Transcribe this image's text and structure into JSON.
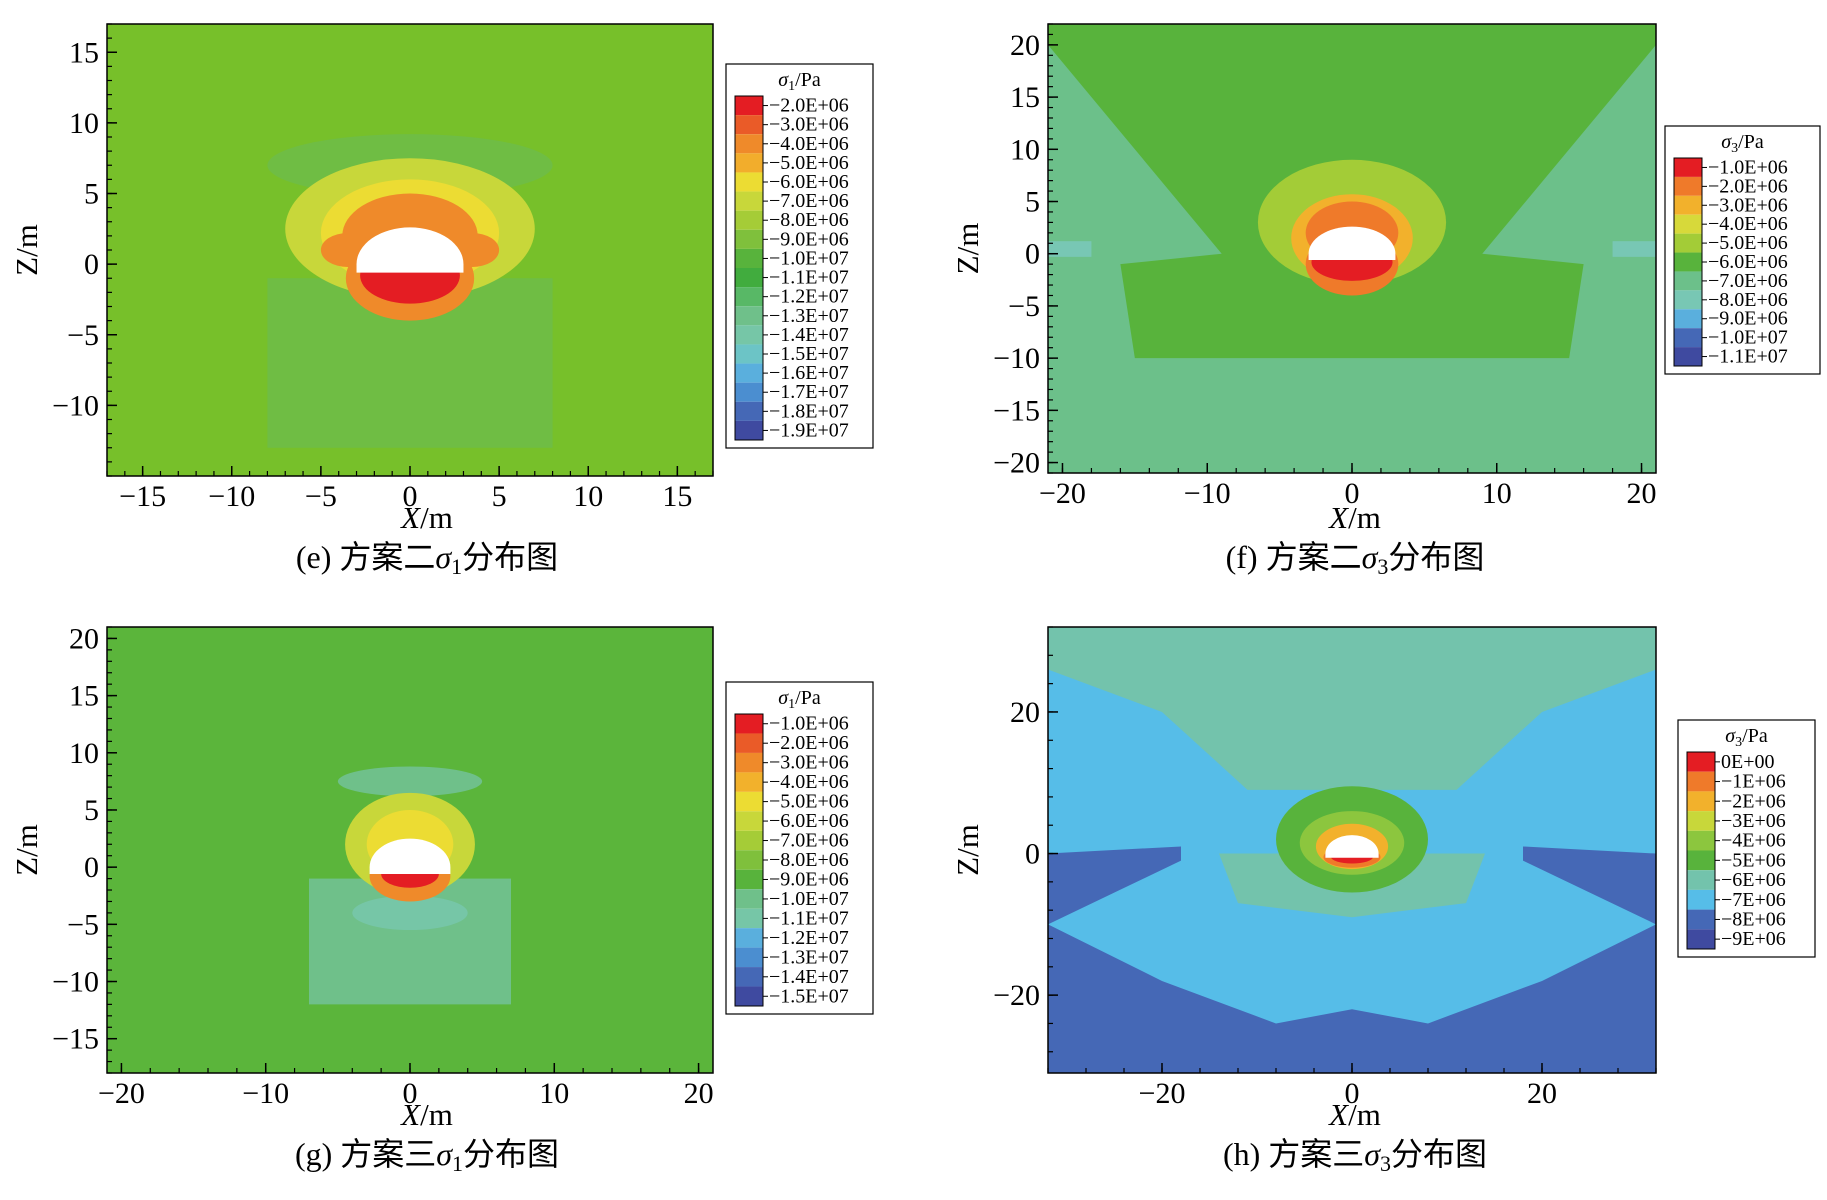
{
  "figure": {
    "panels": [
      {
        "id": "e",
        "caption_prefix": "(e) 方案二",
        "caption_symbol": "σ",
        "caption_sub": "1",
        "caption_suffix": "分布图",
        "xlabel": "X/m",
        "ylabel": "Z/m"
      },
      {
        "id": "f",
        "caption_prefix": "(f) 方案二",
        "caption_symbol": "σ",
        "caption_sub": "3",
        "caption_suffix": "分布图",
        "xlabel": "X/m",
        "ylabel": "Z/m"
      },
      {
        "id": "g",
        "caption_prefix": "(g) 方案三",
        "caption_symbol": "σ",
        "caption_sub": "1",
        "caption_suffix": "分布图",
        "xlabel": "X/m",
        "ylabel": "Z/m"
      },
      {
        "id": "h",
        "caption_prefix": "(h) 方案三",
        "caption_symbol": "σ",
        "caption_sub": "3",
        "caption_suffix": "分布图",
        "xlabel": "X/m",
        "ylabel": "Z/m"
      }
    ]
  },
  "chart_data": [
    {
      "type": "heatmap",
      "panel": "e",
      "xlabel": "X/m",
      "ylabel": "Z/m",
      "xlim": [
        -17,
        17
      ],
      "ylim": [
        -15,
        17
      ],
      "xticks": [
        -15,
        -10,
        -5,
        0,
        5,
        10,
        15
      ],
      "yticks": [
        -10,
        -5,
        0,
        5,
        10,
        15
      ],
      "background_color": "#77c02a",
      "legend": {
        "title_symbol": "σ",
        "title_sub": "1",
        "title_unit": "/Pa",
        "labels": [
          "−2.0E+06",
          "−3.0E+06",
          "−4.0E+06",
          "−5.0E+06",
          "−6.0E+06",
          "−7.0E+06",
          "−8.0E+06",
          "−9.0E+06",
          "−1.0E+07",
          "−1.1E+07",
          "−1.2E+07",
          "−1.3E+07",
          "−1.4E+07",
          "−1.5E+07",
          "−1.6E+07",
          "−1.7E+07",
          "−1.8E+07",
          "−1.9E+07"
        ],
        "colors": [
          "#e41d23",
          "#ea5b28",
          "#ef8a2a",
          "#f2ad2c",
          "#ecdc33",
          "#c8d73a",
          "#a5cc37",
          "#7fc03c",
          "#58b33c",
          "#41ac3e",
          "#58b866",
          "#6fc08a",
          "#76c6a7",
          "#6cc4c6",
          "#5aafdd",
          "#4b8ed0",
          "#4568b6",
          "#3f4aa0"
        ]
      },
      "opening": {
        "center_x": 0,
        "center_z": 0,
        "radius": 3,
        "crown_height": 2.6,
        "invert_depth": 0.6
      },
      "zones": [
        {
          "shape": "rect",
          "x": [
            -8,
            8
          ],
          "z": [
            -13,
            -1
          ],
          "color": "#6fbd44"
        },
        {
          "shape": "ellipse",
          "cx": 0,
          "cz": 7,
          "rx": 8,
          "rz": 2.2,
          "color": "#6fbd44"
        },
        {
          "shape": "ellipse",
          "cx": 0,
          "cz": 2.5,
          "rx": 7,
          "rz": 5,
          "color": "#c8d73a"
        },
        {
          "shape": "ellipse",
          "cx": 0,
          "cz": 2.2,
          "rx": 5,
          "rz": 3.8,
          "color": "#ecdc33"
        },
        {
          "shape": "ellipse",
          "cx": 0,
          "cz": 2,
          "rx": 3.8,
          "rz": 3,
          "color": "#ef8a2a"
        },
        {
          "shape": "ellipse",
          "cx": -3.5,
          "cz": 1,
          "rx": 1.5,
          "rz": 1.2,
          "color": "#ef8a2a"
        },
        {
          "shape": "ellipse",
          "cx": 3.5,
          "cz": 1,
          "rx": 1.5,
          "rz": 1.2,
          "color": "#ef8a2a"
        },
        {
          "shape": "ellipse",
          "cx": 0,
          "cz": -1,
          "rx": 3.6,
          "rz": 3,
          "color": "#ef8a2a"
        },
        {
          "shape": "ellipse",
          "cx": 0,
          "cz": -0.8,
          "rx": 2.8,
          "rz": 2,
          "color": "#e41d23"
        }
      ]
    },
    {
      "type": "heatmap",
      "panel": "f",
      "xlabel": "X/m",
      "ylabel": "Z/m",
      "xlim": [
        -21,
        21
      ],
      "ylim": [
        -21,
        22
      ],
      "xticks": [
        -20,
        -10,
        0,
        10,
        20
      ],
      "yticks": [
        -20,
        -15,
        -10,
        -5,
        0,
        5,
        10,
        15,
        20
      ],
      "background_color": "#6cc08a",
      "legend": {
        "title_symbol": "σ",
        "title_sub": "3",
        "title_unit": "/Pa",
        "labels": [
          "−1.0E+06",
          "−2.0E+06",
          "−3.0E+06",
          "−4.0E+06",
          "−5.0E+06",
          "−6.0E+06",
          "−7.0E+06",
          "−8.0E+06",
          "−9.0E+06",
          "−1.0E+07",
          "−1.1E+07"
        ],
        "colors": [
          "#e41d23",
          "#ef7a2a",
          "#f2b12c",
          "#d7d93a",
          "#a3cc37",
          "#58b33c",
          "#6cc08a",
          "#78c7b4",
          "#5aafdd",
          "#4568b6",
          "#3f4aa0"
        ]
      },
      "opening": {
        "center_x": 0,
        "center_z": 0,
        "radius": 3,
        "crown_height": 2.6,
        "invert_depth": 0.6
      },
      "zones": [
        {
          "shape": "poly",
          "points": [
            [
              -21,
              22
            ],
            [
              21,
              22
            ],
            [
              21,
              20
            ],
            [
              9,
              0
            ],
            [
              16,
              -1
            ],
            [
              15,
              -10
            ],
            [
              -15,
              -10
            ],
            [
              -16,
              -1
            ],
            [
              -9,
              0
            ],
            [
              -21,
              20
            ]
          ],
          "color": "#58b33c"
        },
        {
          "shape": "ellipse",
          "cx": 0,
          "cz": 3,
          "rx": 6.5,
          "rz": 6,
          "color": "#a3cc37"
        },
        {
          "shape": "ellipse",
          "cx": 0,
          "cz": 1.5,
          "rx": 4.2,
          "rz": 4.2,
          "color": "#f2b12c"
        },
        {
          "shape": "ellipse",
          "cx": 0,
          "cz": 2,
          "rx": 3.2,
          "rz": 3,
          "color": "#ef7a2a"
        },
        {
          "shape": "ellipse",
          "cx": 0,
          "cz": -1,
          "rx": 3.2,
          "rz": 3,
          "color": "#ef7a2a"
        },
        {
          "shape": "ellipse",
          "cx": 0,
          "cz": -0.8,
          "rx": 2.8,
          "rz": 1.8,
          "color": "#e41d23"
        },
        {
          "shape": "rect",
          "x": [
            -21,
            -18
          ],
          "z": [
            -0.3,
            1.2
          ],
          "color": "#78c7b4"
        },
        {
          "shape": "rect",
          "x": [
            18,
            21
          ],
          "z": [
            -0.3,
            1.2
          ],
          "color": "#78c7b4"
        }
      ]
    },
    {
      "type": "heatmap",
      "panel": "g",
      "xlabel": "X/m",
      "ylabel": "Z/m",
      "xlim": [
        -21,
        21
      ],
      "ylim": [
        -18,
        21
      ],
      "xticks": [
        -20,
        -10,
        0,
        10,
        20
      ],
      "yticks": [
        -15,
        -10,
        -5,
        0,
        5,
        10,
        15,
        20
      ],
      "background_color": "#5bb53b",
      "legend": {
        "title_symbol": "σ",
        "title_sub": "1",
        "title_unit": "/Pa",
        "labels": [
          "−1.0E+06",
          "−2.0E+06",
          "−3.0E+06",
          "−4.0E+06",
          "−5.0E+06",
          "−6.0E+06",
          "−7.0E+06",
          "−8.0E+06",
          "−9.0E+06",
          "−1.0E+07",
          "−1.1E+07",
          "−1.2E+07",
          "−1.3E+07",
          "−1.4E+07",
          "−1.5E+07"
        ],
        "colors": [
          "#e41d23",
          "#ea5b28",
          "#ef8a2a",
          "#f2b12c",
          "#ecdc33",
          "#c8d73a",
          "#a5cc37",
          "#7fc03c",
          "#58b33c",
          "#6fc08a",
          "#76c6a7",
          "#5aafdd",
          "#4b8ed0",
          "#4568b6",
          "#3f4aa0"
        ]
      },
      "opening": {
        "center_x": 0,
        "center_z": 0,
        "radius": 2.8,
        "crown_height": 2.5,
        "invert_depth": 0.6
      },
      "zones": [
        {
          "shape": "rect",
          "x": [
            -7,
            7
          ],
          "z": [
            -12,
            -1
          ],
          "color": "#6fc08a"
        },
        {
          "shape": "ellipse",
          "cx": 0,
          "cz": 7.5,
          "rx": 5,
          "rz": 1.3,
          "color": "#6fc08a"
        },
        {
          "shape": "ellipse",
          "cx": 0,
          "cz": -4,
          "rx": 4,
          "rz": 1.5,
          "color": "#76c6a7"
        },
        {
          "shape": "ellipse",
          "cx": 0,
          "cz": 2,
          "rx": 4.5,
          "rz": 4.5,
          "color": "#c8d73a"
        },
        {
          "shape": "ellipse",
          "cx": 0,
          "cz": 2,
          "rx": 3,
          "rz": 3,
          "color": "#ecdc33"
        },
        {
          "shape": "ellipse",
          "cx": 0,
          "cz": -0.8,
          "rx": 2.8,
          "rz": 2.2,
          "color": "#ef8a2a"
        },
        {
          "shape": "ellipse",
          "cx": 0,
          "cz": -0.6,
          "rx": 2,
          "rz": 1.2,
          "color": "#e41d23"
        }
      ]
    },
    {
      "type": "heatmap",
      "panel": "h",
      "xlabel": "X/m",
      "ylabel": "Z/m",
      "xlim": [
        -32,
        32
      ],
      "ylim": [
        -31,
        32
      ],
      "xticks": [
        -20,
        0,
        20
      ],
      "yticks": [
        -20,
        0,
        20
      ],
      "background_color": "#56bde8",
      "legend": {
        "title_symbol": "σ",
        "title_sub": "3",
        "title_unit": "/Pa",
        "labels": [
          "0E+00",
          "−1E+06",
          "−2E+06",
          "−3E+06",
          "−4E+06",
          "−5E+06",
          "−6E+06",
          "−7E+06",
          "−8E+06",
          "−9E+06"
        ],
        "colors": [
          "#e41d23",
          "#ef7a2a",
          "#f2b12c",
          "#c8d73a",
          "#8cc63e",
          "#58b33c",
          "#73c3ac",
          "#56bde8",
          "#4568b6",
          "#3f4aa0"
        ]
      },
      "opening": {
        "center_x": 0,
        "center_z": 0,
        "radius": 2.8,
        "crown_height": 2.6,
        "invert_depth": 0.6
      },
      "zones": [
        {
          "shape": "poly",
          "points": [
            [
              -32,
              32
            ],
            [
              32,
              32
            ],
            [
              32,
              26
            ],
            [
              20,
              20
            ],
            [
              11,
              9
            ],
            [
              -11,
              9
            ],
            [
              -20,
              20
            ],
            [
              -32,
              26
            ]
          ],
          "color": "#73c3ac"
        },
        {
          "shape": "poly",
          "points": [
            [
              -32,
              0
            ],
            [
              -18,
              1
            ],
            [
              -18,
              -1
            ],
            [
              -32,
              -10
            ]
          ],
          "color": "#4568b6"
        },
        {
          "shape": "poly",
          "points": [
            [
              32,
              0
            ],
            [
              18,
              1
            ],
            [
              18,
              -1
            ],
            [
              32,
              -10
            ]
          ],
          "color": "#4568b6"
        },
        {
          "shape": "poly",
          "points": [
            [
              -32,
              -10
            ],
            [
              -20,
              -18
            ],
            [
              -8,
              -24
            ],
            [
              0,
              -22
            ],
            [
              8,
              -24
            ],
            [
              20,
              -18
            ],
            [
              32,
              -10
            ],
            [
              32,
              -31
            ],
            [
              -32,
              -31
            ]
          ],
          "color": "#4568b6"
        },
        {
          "shape": "poly",
          "points": [
            [
              -14,
              0
            ],
            [
              14,
              0
            ],
            [
              12,
              -7
            ],
            [
              0,
              -9
            ],
            [
              -12,
              -7
            ]
          ],
          "color": "#73c3ac"
        },
        {
          "shape": "ellipse",
          "cx": 0,
          "cz": 2,
          "rx": 8,
          "rz": 7.5,
          "color": "#58b33c"
        },
        {
          "shape": "ellipse",
          "cx": 0,
          "cz": 1.5,
          "rx": 5.5,
          "rz": 4.5,
          "color": "#8cc63e"
        },
        {
          "shape": "ellipse",
          "cx": 0,
          "cz": 1,
          "rx": 3.8,
          "rz": 3.2,
          "color": "#f2b12c"
        },
        {
          "shape": "ellipse",
          "cx": 0,
          "cz": -0.5,
          "rx": 3,
          "rz": 1.5,
          "color": "#ef7a2a"
        },
        {
          "shape": "ellipse",
          "cx": 0,
          "cz": -0.5,
          "rx": 2.2,
          "rz": 0.9,
          "color": "#e41d23"
        }
      ]
    }
  ]
}
